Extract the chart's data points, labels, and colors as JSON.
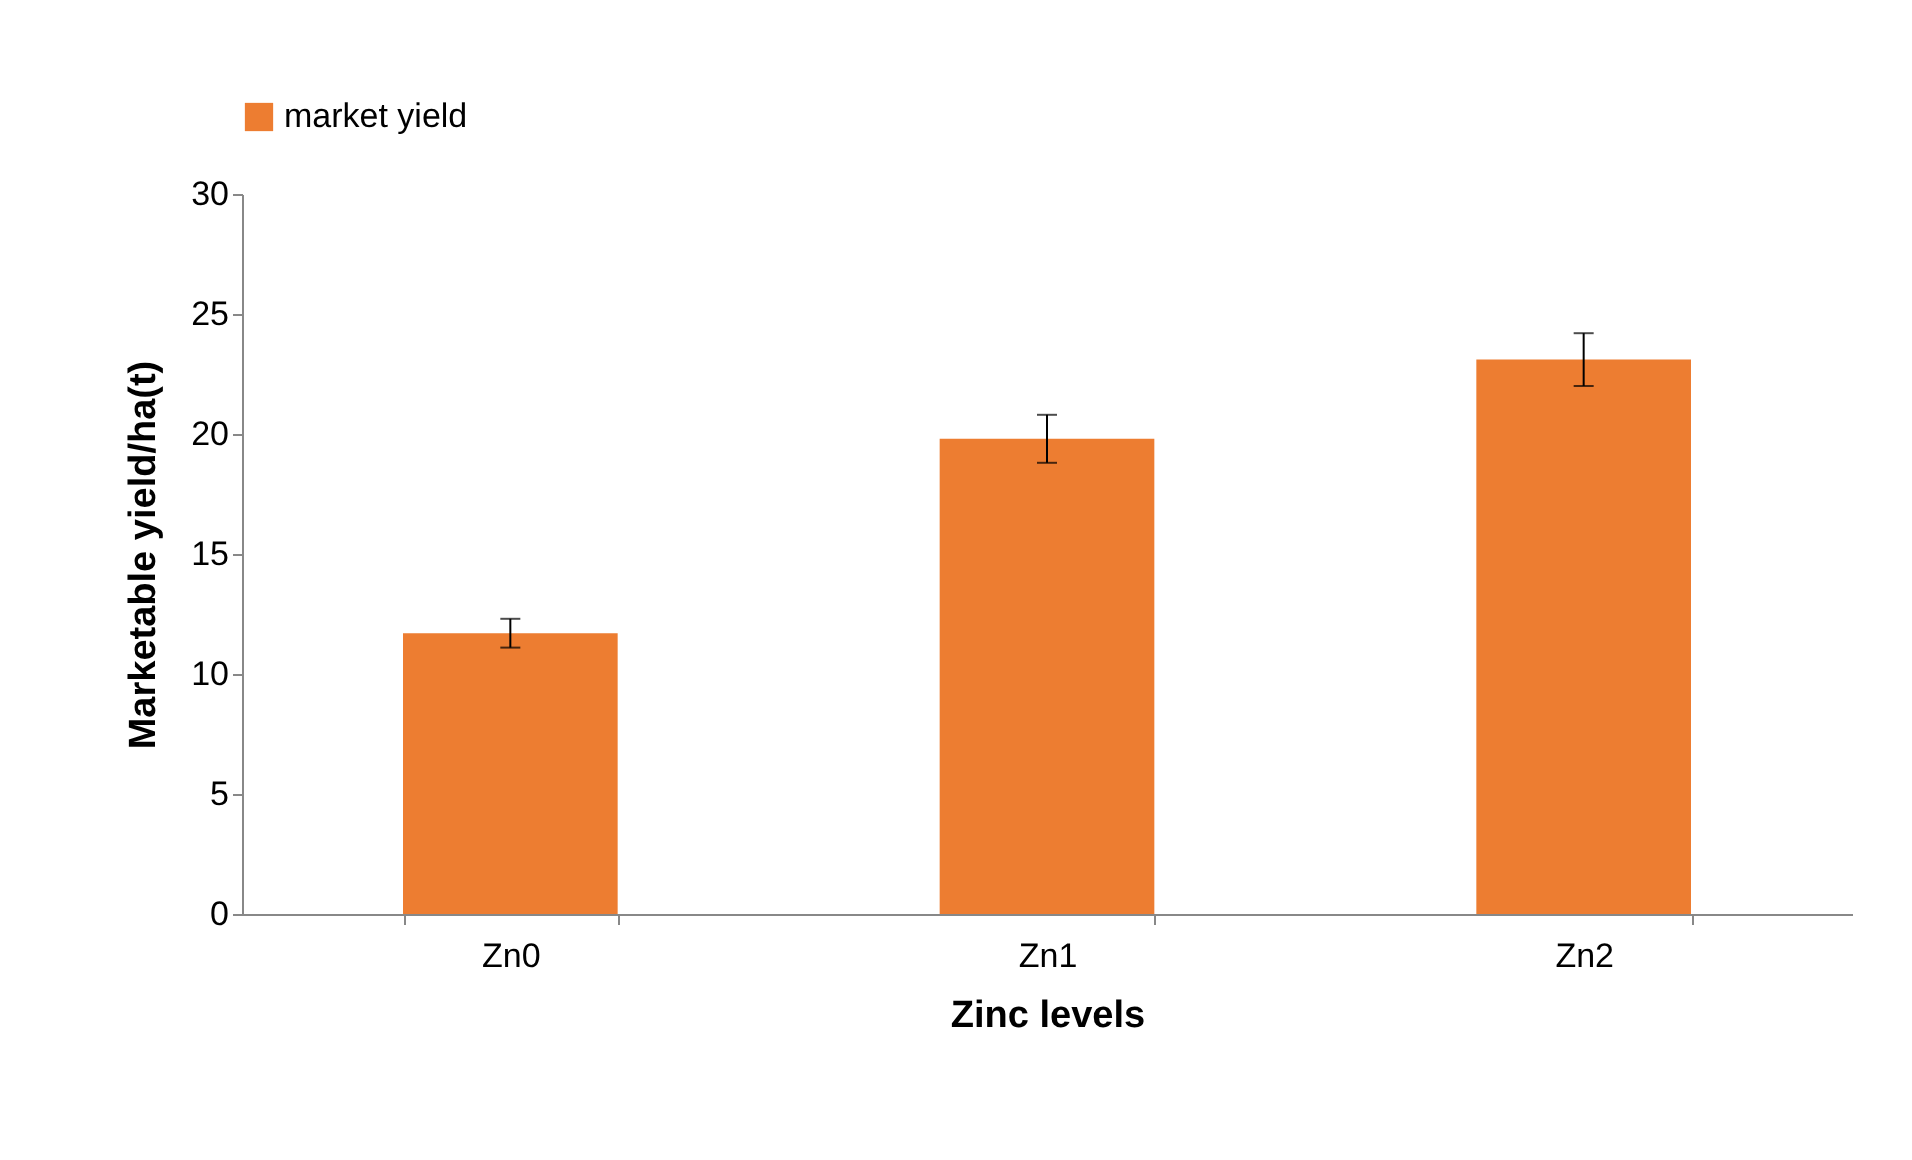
{
  "chart_data": {
    "type": "bar",
    "xlabel": "Zinc levels",
    "ylabel": "Marketable yield/ha(t)",
    "categories": [
      "Zn0",
      "Zn1",
      "Zn2"
    ],
    "series": [
      {
        "name": "market yield",
        "color": "#ed7d31",
        "values": [
          11.7,
          19.8,
          23.1
        ],
        "errors": [
          0.6,
          1.0,
          1.1
        ]
      }
    ],
    "ylim": [
      0,
      30
    ],
    "yticks": [
      0,
      5,
      10,
      15,
      20,
      25,
      30
    ],
    "grid": false,
    "legend": "top"
  }
}
